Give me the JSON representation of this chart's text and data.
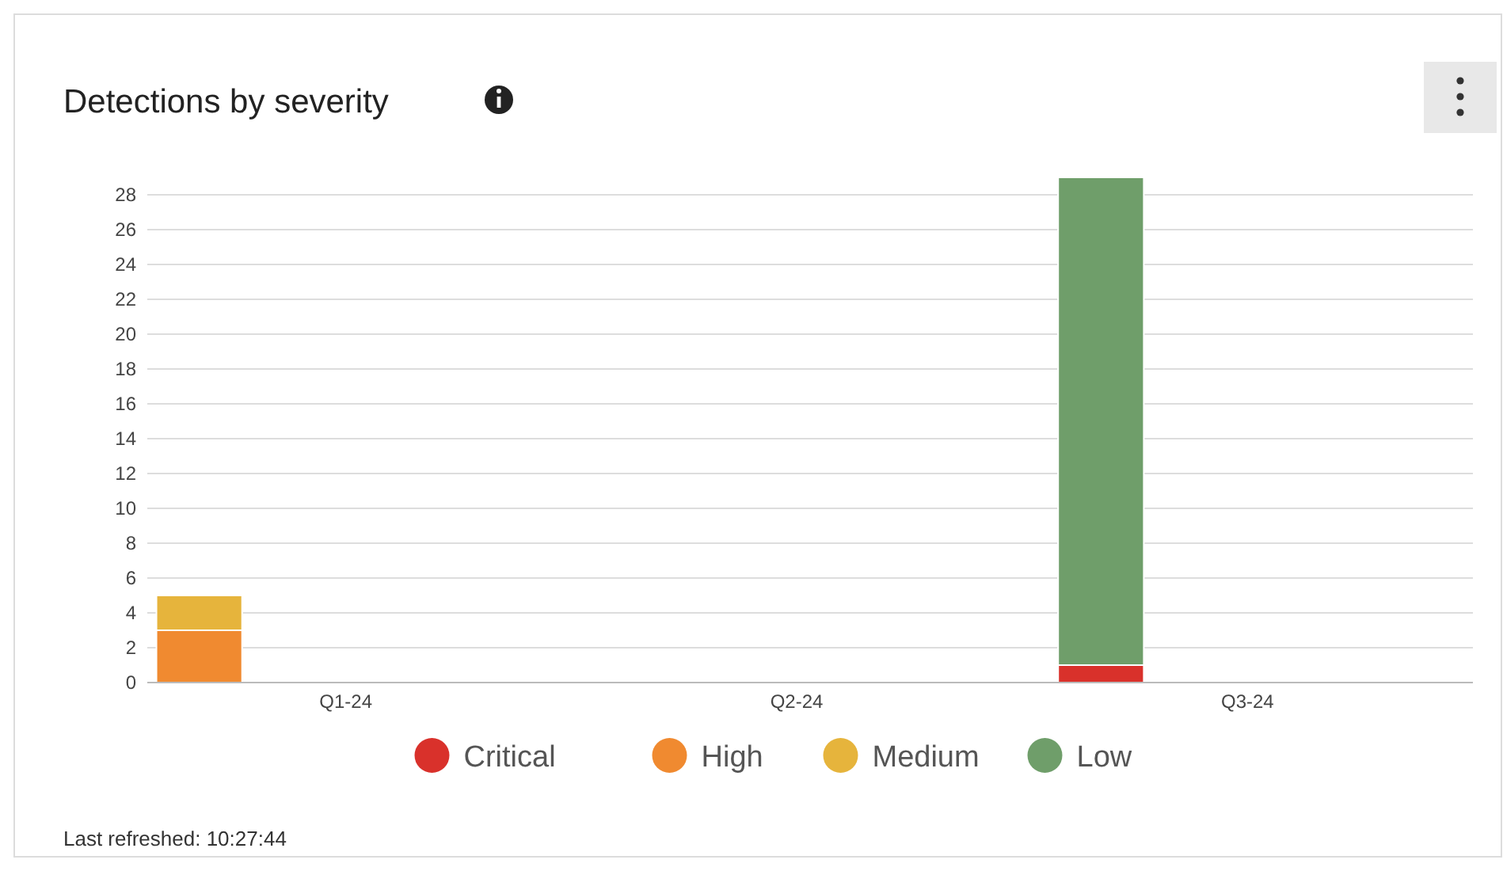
{
  "chart_data": {
    "type": "bar",
    "title": "Detections by severity",
    "stacked": true,
    "categories": [
      "Q1-24",
      "Q2-24",
      "Q3-24"
    ],
    "series": [
      {
        "name": "Critical",
        "color": "#d9312b",
        "values": [
          0,
          0,
          1
        ]
      },
      {
        "name": "High",
        "color": "#f08a30",
        "values": [
          3,
          0,
          0
        ]
      },
      {
        "name": "Medium",
        "color": "#e6b43c",
        "values": [
          2,
          0,
          0
        ]
      },
      {
        "name": "Low",
        "color": "#6f9e6a",
        "values": [
          0,
          0,
          28
        ]
      }
    ],
    "ylim": [
      0,
      29
    ],
    "yticks": [
      0,
      2,
      4,
      6,
      8,
      10,
      12,
      14,
      16,
      18,
      20,
      22,
      24,
      26,
      28
    ],
    "grid": "y",
    "legend": "bottom",
    "annotations": [
      "Last refreshed: 10:27:44"
    ]
  }
}
